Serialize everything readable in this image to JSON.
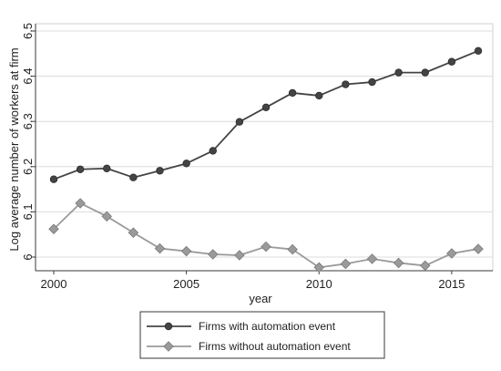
{
  "chart_data": {
    "type": "line",
    "xlabel": "year",
    "ylabel": "Log average number of workers at firm",
    "xlim": [
      2000,
      2016
    ],
    "ylim": [
      6.0,
      6.5
    ],
    "x_ticks": [
      2000,
      2005,
      2010,
      2015
    ],
    "x_tick_labels": [
      "2000",
      "2005",
      "2010",
      "2015"
    ],
    "y_ticks": [
      6.0,
      6.1,
      6.2,
      6.3,
      6.4,
      6.5
    ],
    "y_tick_labels": [
      "6",
      "6.1",
      "6.2",
      "6.3",
      "6.4",
      "6.5"
    ],
    "grid": "horizontal",
    "legend_position": "bottom",
    "x": [
      2000,
      2001,
      2002,
      2003,
      2004,
      2005,
      2006,
      2007,
      2008,
      2009,
      2010,
      2011,
      2012,
      2013,
      2014,
      2015,
      2016
    ],
    "series": [
      {
        "name": "Firms with automation event",
        "color": "#444444",
        "marker": "circle",
        "values": [
          6.172,
          6.194,
          6.196,
          6.176,
          6.191,
          6.207,
          6.235,
          6.299,
          6.331,
          6.363,
          6.357,
          6.382,
          6.387,
          6.408,
          6.408,
          6.432,
          6.456
        ]
      },
      {
        "name": "Firms without automation event",
        "color": "#9a9a9a",
        "marker": "diamond",
        "values": [
          6.062,
          6.119,
          6.09,
          6.054,
          6.019,
          6.013,
          6.006,
          6.004,
          6.023,
          6.017,
          5.977,
          5.985,
          5.996,
          5.987,
          5.981,
          6.008,
          6.018
        ]
      }
    ]
  }
}
